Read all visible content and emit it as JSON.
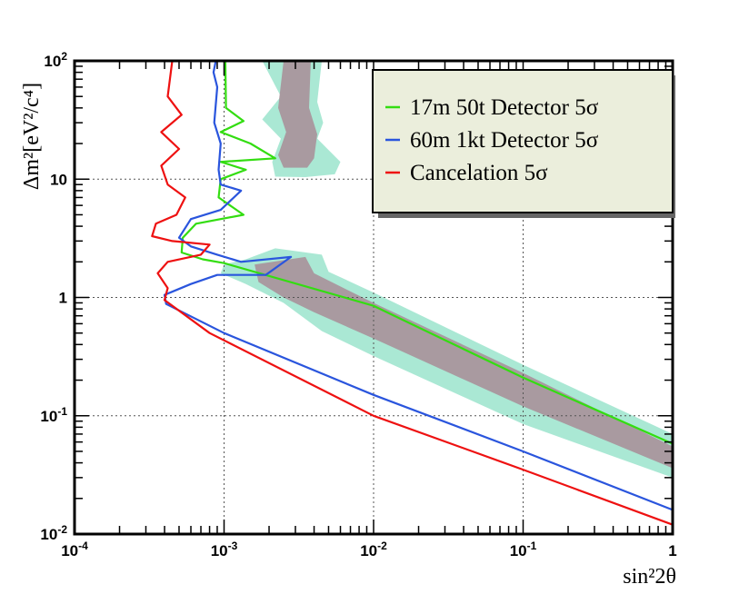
{
  "chart_data": {
    "type": "line",
    "title": "",
    "xlabel": "sin²2θ",
    "ylabel": "Δm²[eV²/c⁴]",
    "xscale": "log",
    "yscale": "log",
    "xlim": [
      0.0001,
      1
    ],
    "ylim": [
      0.01,
      100
    ],
    "grid": true,
    "legend_position": "top-right",
    "x_ticks": [
      {
        "value": 0.0001,
        "base": "10",
        "exp": "-4"
      },
      {
        "value": 0.001,
        "base": "10",
        "exp": "-3"
      },
      {
        "value": 0.01,
        "base": "10",
        "exp": "-2"
      },
      {
        "value": 0.1,
        "base": "10",
        "exp": "-1"
      },
      {
        "value": 1,
        "base": "1",
        "exp": ""
      }
    ],
    "y_ticks": [
      {
        "value": 0.01,
        "base": "10",
        "exp": "-2"
      },
      {
        "value": 0.1,
        "base": "10",
        "exp": "-1"
      },
      {
        "value": 1,
        "base": "1",
        "exp": ""
      },
      {
        "value": 10,
        "base": "10",
        "exp": ""
      },
      {
        "value": 100,
        "base": "10",
        "exp": "2"
      }
    ],
    "series": [
      {
        "name": "17m 50t Detector 5σ",
        "color": "#33dd11",
        "points": [
          [
            0.00102,
            100
          ],
          [
            0.00103,
            40
          ],
          [
            0.00135,
            31
          ],
          [
            0.00095,
            25
          ],
          [
            0.0015,
            20
          ],
          [
            0.0022,
            15
          ],
          [
            0.00095,
            14
          ],
          [
            0.0014,
            12
          ],
          [
            0.00095,
            10
          ],
          [
            0.00092,
            7
          ],
          [
            0.00135,
            5
          ],
          [
            0.00065,
            4.2
          ],
          [
            0.00053,
            3.2
          ],
          [
            0.00052,
            2.4
          ],
          [
            0.00072,
            2.1
          ],
          [
            0.001,
            1.95
          ],
          [
            0.01,
            0.85
          ],
          [
            0.1,
            0.21
          ],
          [
            1,
            0.058
          ]
        ]
      },
      {
        "name": "60m 1kt Detector 5σ",
        "color": "#2a55dd",
        "points": [
          [
            0.00088,
            100
          ],
          [
            0.00085,
            80
          ],
          [
            0.0009,
            60
          ],
          [
            0.00086,
            30
          ],
          [
            0.00095,
            20
          ],
          [
            0.00092,
            12
          ],
          [
            0.00095,
            9
          ],
          [
            0.0013,
            8
          ],
          [
            0.00095,
            5.5
          ],
          [
            0.0006,
            4.6
          ],
          [
            0.0005,
            3.2
          ],
          [
            0.0006,
            2.7
          ],
          [
            0.0009,
            2.3
          ],
          [
            0.0013,
            2.0
          ],
          [
            0.0028,
            2.2
          ],
          [
            0.0019,
            1.55
          ],
          [
            0.0009,
            1.55
          ],
          [
            0.0006,
            1.3
          ],
          [
            0.0004,
            1.05
          ],
          [
            0.00041,
            0.88
          ],
          [
            0.001,
            0.5
          ],
          [
            0.01,
            0.15
          ],
          [
            0.1,
            0.05
          ],
          [
            1,
            0.016
          ]
        ]
      },
      {
        "name": "Cancelation 5σ",
        "color": "#ee1111",
        "points": [
          [
            0.00045,
            100
          ],
          [
            0.00042,
            50
          ],
          [
            0.00052,
            35
          ],
          [
            0.00038,
            25
          ],
          [
            0.0005,
            18
          ],
          [
            0.00038,
            13
          ],
          [
            0.00042,
            9
          ],
          [
            0.00055,
            7
          ],
          [
            0.00048,
            5
          ],
          [
            0.00035,
            4.2
          ],
          [
            0.00033,
            3.3
          ],
          [
            0.00045,
            3.0
          ],
          [
            0.0008,
            2.8
          ],
          [
            0.0007,
            2.3
          ],
          [
            0.00042,
            2.0
          ],
          [
            0.00036,
            1.6
          ],
          [
            0.00042,
            1.2
          ],
          [
            0.0004,
            0.95
          ],
          [
            0.0008,
            0.5
          ],
          [
            0.01,
            0.1
          ],
          [
            0.1,
            0.035
          ],
          [
            1,
            0.012
          ]
        ]
      }
    ],
    "regions": [
      {
        "name": "outer band",
        "color": "#aae8d4",
        "polygons": [
          [
            [
              0.0018,
              100
            ],
            [
              0.0045,
              100
            ],
            [
              0.0042,
              45
            ],
            [
              0.0046,
              30
            ],
            [
              0.0042,
              22
            ],
            [
              0.006,
              14
            ],
            [
              0.0055,
              11
            ],
            [
              0.0035,
              10.4
            ],
            [
              0.0022,
              10.5
            ],
            [
              0.0021,
              14
            ],
            [
              0.0024,
              22
            ],
            [
              0.0018,
              32
            ],
            [
              0.0024,
              50
            ]
          ],
          [
            [
              0.0014,
              2.1
            ],
            [
              0.0022,
              2.6
            ],
            [
              0.0045,
              2.3
            ],
            [
              0.005,
              1.65
            ],
            [
              0.01,
              1.1
            ],
            [
              0.1,
              0.27
            ],
            [
              1,
              0.07
            ],
            [
              1,
              0.03
            ],
            [
              0.1,
              0.085
            ],
            [
              0.01,
              0.32
            ],
            [
              0.0045,
              0.52
            ],
            [
              0.0025,
              0.9
            ],
            [
              0.0014,
              1.3
            ],
            [
              0.00095,
              1.6
            ],
            [
              0.001,
              1.9
            ]
          ]
        ]
      },
      {
        "name": "inner band",
        "color": "#a99aa0",
        "polygons": [
          [
            [
              0.0025,
              100
            ],
            [
              0.0038,
              100
            ],
            [
              0.0037,
              40
            ],
            [
              0.0042,
              24
            ],
            [
              0.004,
              15
            ],
            [
              0.0036,
              12.5
            ],
            [
              0.0025,
              12.5
            ],
            [
              0.0023,
              16
            ],
            [
              0.0026,
              25
            ],
            [
              0.0023,
              40
            ]
          ],
          [
            [
              0.0016,
              1.9
            ],
            [
              0.0035,
              2.2
            ],
            [
              0.004,
              1.6
            ],
            [
              0.01,
              0.9
            ],
            [
              0.1,
              0.23
            ],
            [
              1,
              0.055
            ],
            [
              1,
              0.036
            ],
            [
              0.1,
              0.12
            ],
            [
              0.01,
              0.45
            ],
            [
              0.004,
              0.75
            ],
            [
              0.0025,
              1.0
            ],
            [
              0.0017,
              1.35
            ]
          ]
        ]
      }
    ]
  }
}
